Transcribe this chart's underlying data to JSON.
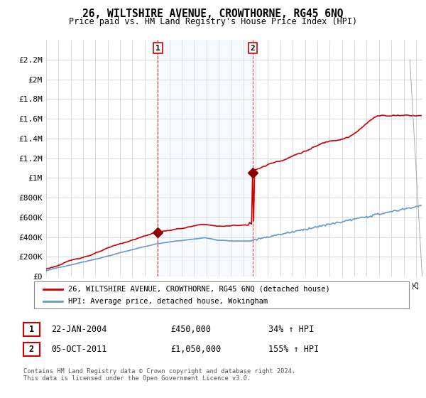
{
  "title": "26, WILTSHIRE AVENUE, CROWTHORNE, RG45 6NQ",
  "subtitle": "Price paid vs. HM Land Registry's House Price Index (HPI)",
  "legend_line1": "26, WILTSHIRE AVENUE, CROWTHORNE, RG45 6NQ (detached house)",
  "legend_line2": "HPI: Average price, detached house, Wokingham",
  "annotation1_date": "22-JAN-2004",
  "annotation1_price": "£450,000",
  "annotation1_hpi": "34% ↑ HPI",
  "annotation2_date": "05-OCT-2011",
  "annotation2_price": "£1,050,000",
  "annotation2_hpi": "155% ↑ HPI",
  "footer": "Contains HM Land Registry data © Crown copyright and database right 2024.\nThis data is licensed under the Open Government Licence v3.0.",
  "ylim": [
    0,
    2400000
  ],
  "yticks": [
    0,
    200000,
    400000,
    600000,
    800000,
    1000000,
    1200000,
    1400000,
    1600000,
    1800000,
    2000000,
    2200000
  ],
  "ytick_labels": [
    "£0",
    "£200K",
    "£400K",
    "£600K",
    "£800K",
    "£1M",
    "£1.2M",
    "£1.4M",
    "£1.6M",
    "£1.8M",
    "£2M",
    "£2.2M"
  ],
  "house_color": "#cc0000",
  "hpi_color": "#6699cc",
  "marker_color": "#8b0000",
  "vline_color": "#dd4444",
  "shade_color": "#ddeeff",
  "background_color": "#ffffff",
  "grid_color": "#cccccc",
  "xmin": 1995.0,
  "xmax": 2025.5,
  "vline1_x": 2004.07,
  "vline2_x": 2011.75,
  "marker1_x": 2004.07,
  "marker1_y": 450000,
  "marker2_x": 2011.75,
  "marker2_y": 1050000
}
